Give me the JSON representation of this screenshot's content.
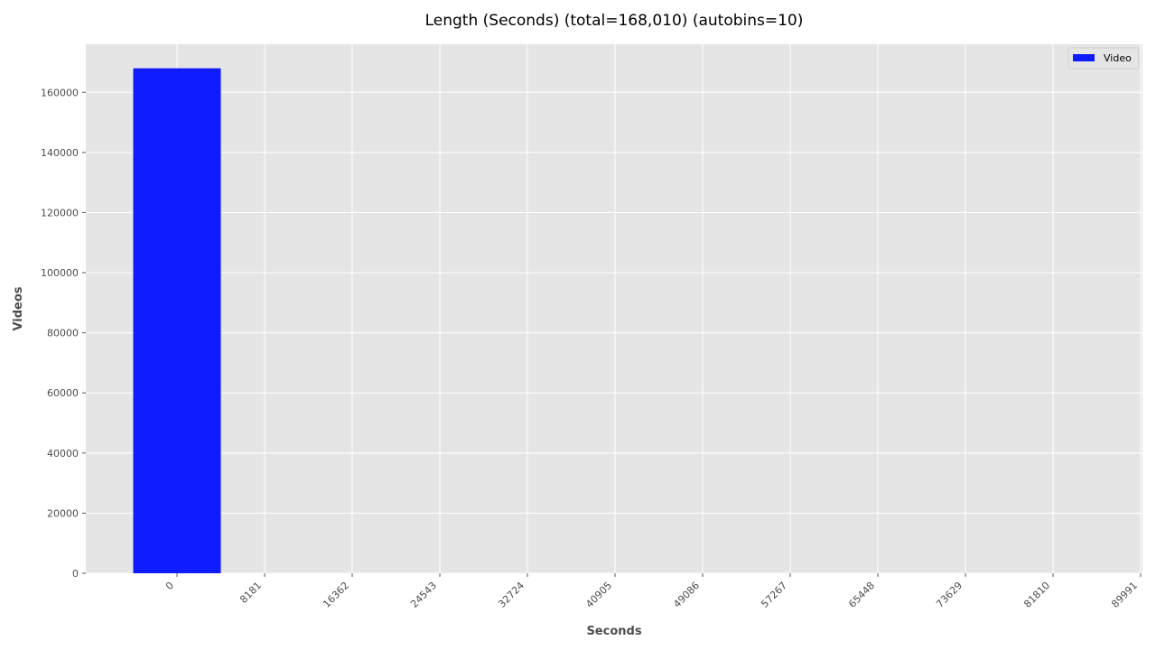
{
  "chart_data": {
    "type": "bar",
    "title": "Length (Seconds) (total=168,010) (autobins=10)",
    "xlabel": "Seconds",
    "ylabel": "Videos",
    "x_ticks": [
      "0",
      "8181",
      "16362",
      "24543",
      "32724",
      "40905",
      "49086",
      "57267",
      "65448",
      "73629",
      "81810",
      "89991"
    ],
    "y_ticks": [
      "0",
      "20000",
      "40000",
      "60000",
      "80000",
      "100000",
      "120000",
      "140000",
      "160000"
    ],
    "ylim": [
      0,
      176000
    ],
    "bin_edges": [
      0,
      8181,
      16362,
      24543,
      32724,
      40905,
      49086,
      57267,
      65448,
      73629,
      81810,
      89991
    ],
    "series": [
      {
        "name": "Video",
        "color": "#0f1cff",
        "values": [
          168000,
          0,
          0,
          0,
          0,
          0,
          0,
          0,
          0,
          0,
          0
        ]
      }
    ],
    "legend_position": "top-right",
    "grid": true,
    "background_color": "#e5e5e5"
  }
}
